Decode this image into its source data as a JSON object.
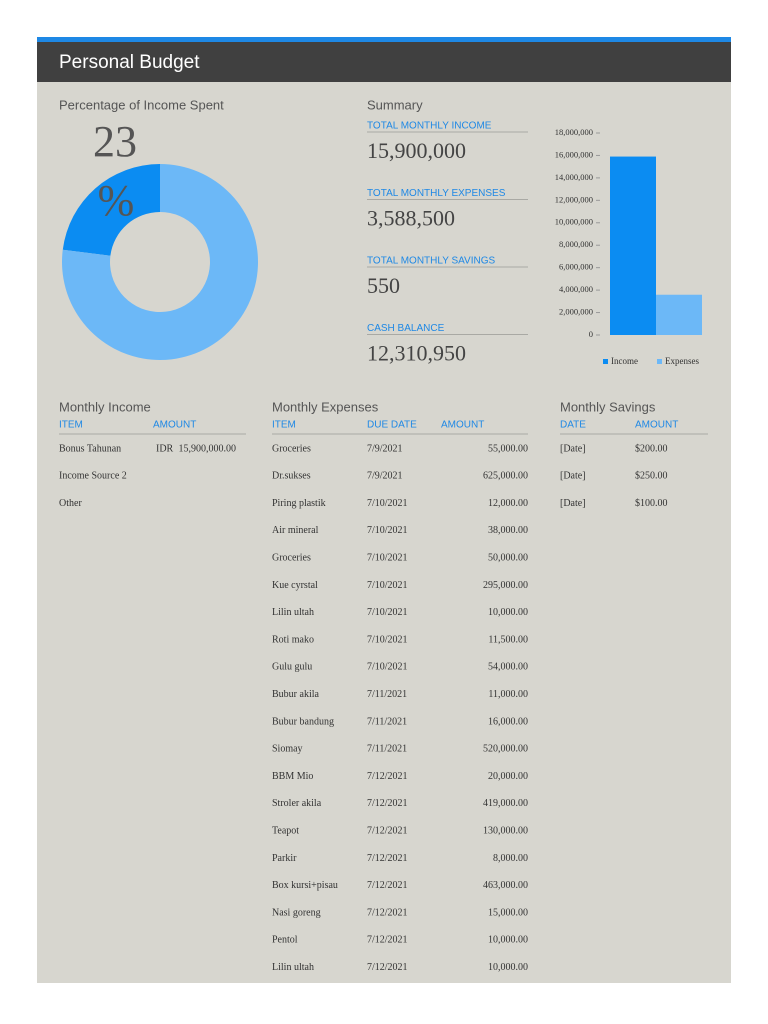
{
  "header": {
    "title": "Personal Budget"
  },
  "percent_chart": {
    "type": "pie",
    "title": "Percentage of Income Spent",
    "values": [
      23,
      77
    ],
    "value_labels": [
      "23",
      null
    ],
    "unit_sign": "%",
    "colors": [
      "#0b8cf2",
      "#6cb8f7"
    ]
  },
  "summary": {
    "title": "Summary",
    "items": [
      {
        "label": "TOTAL MONTHLY INCOME",
        "value": "15,900,000"
      },
      {
        "label": "TOTAL MONTHLY EXPENSES",
        "value": "3,588,500"
      },
      {
        "label": "TOTAL MONTHLY SAVINGS",
        "value": "550"
      },
      {
        "label": "CASH BALANCE",
        "value": "12,310,950"
      }
    ]
  },
  "bar_chart": {
    "type": "bar",
    "categories": [
      "Income",
      "Expenses"
    ],
    "values": [
      15900000,
      3588500
    ],
    "colors": [
      "#0b8cf2",
      "#6cb8f7"
    ],
    "ylim": [
      0,
      18000000
    ],
    "yticks": [
      0,
      {
        "value": 2000000,
        "label": "2,000,000"
      },
      {
        "value": 4000000,
        "label": "4,000,000"
      },
      {
        "value": 6000000,
        "label": "6,000,000"
      },
      {
        "value": 8000000,
        "label": "8,000,000"
      },
      {
        "value": 10000000,
        "label": "10,000,000"
      },
      {
        "value": 12000000,
        "label": "12,000,000"
      },
      {
        "value": 14000000,
        "label": "14,000,000"
      },
      {
        "value": 16000000,
        "label": "16,000,000"
      },
      {
        "value": 18000000,
        "label": "18,000,000"
      }
    ],
    "legend": "bottom"
  },
  "income": {
    "title": "Monthly Income",
    "columns": [
      "ITEM",
      "AMOUNT"
    ],
    "rows": [
      {
        "item": "Bonus Tahunan",
        "currency": "IDR",
        "amount": "15,900,000.00"
      },
      {
        "item": "Income Source 2"
      },
      {
        "item": "Other"
      }
    ]
  },
  "expenses": {
    "title": "Monthly Expenses",
    "columns": [
      "ITEM",
      "DUE DATE",
      "AMOUNT"
    ],
    "rows": [
      [
        "Groceries",
        "7/9/2021",
        "55,000.00"
      ],
      [
        "Dr.sukses",
        "7/9/2021",
        "625,000.00"
      ],
      [
        "Piring plastik",
        "7/10/2021",
        "12,000.00"
      ],
      [
        "Air mineral",
        "7/10/2021",
        "38,000.00"
      ],
      [
        "Groceries",
        "7/10/2021",
        "50,000.00"
      ],
      [
        "Kue cyrstal",
        "7/10/2021",
        "295,000.00"
      ],
      [
        "Lilin ultah",
        "7/10/2021",
        "10,000.00"
      ],
      [
        "Roti mako",
        "7/10/2021",
        "11,500.00"
      ],
      [
        "Gulu gulu",
        "7/10/2021",
        "54,000.00"
      ],
      [
        "Bubur akila",
        "7/11/2021",
        "11,000.00"
      ],
      [
        "Bubur bandung",
        "7/11/2021",
        "16,000.00"
      ],
      [
        "Siomay",
        "7/11/2021",
        "520,000.00"
      ],
      [
        "BBM Mio",
        "7/12/2021",
        "20,000.00"
      ],
      [
        "Stroler akila",
        "7/12/2021",
        "419,000.00"
      ],
      [
        "Teapot",
        "7/12/2021",
        "130,000.00"
      ],
      [
        "Parkir",
        "7/12/2021",
        "8,000.00"
      ],
      [
        "Box kursi+pisau",
        "7/12/2021",
        "463,000.00"
      ],
      [
        "Nasi goreng",
        "7/12/2021",
        "15,000.00"
      ],
      [
        "Pentol",
        "7/12/2021",
        "10,000.00"
      ],
      [
        "Lilin ultah",
        "7/12/2021",
        "10,000.00"
      ]
    ]
  },
  "savings": {
    "title": "Monthly Savings",
    "columns": [
      "DATE",
      "AMOUNT"
    ],
    "rows": [
      [
        "[Date]",
        "$200.00"
      ],
      [
        "[Date]",
        "$250.00"
      ],
      [
        "[Date]",
        "$100.00"
      ]
    ]
  }
}
